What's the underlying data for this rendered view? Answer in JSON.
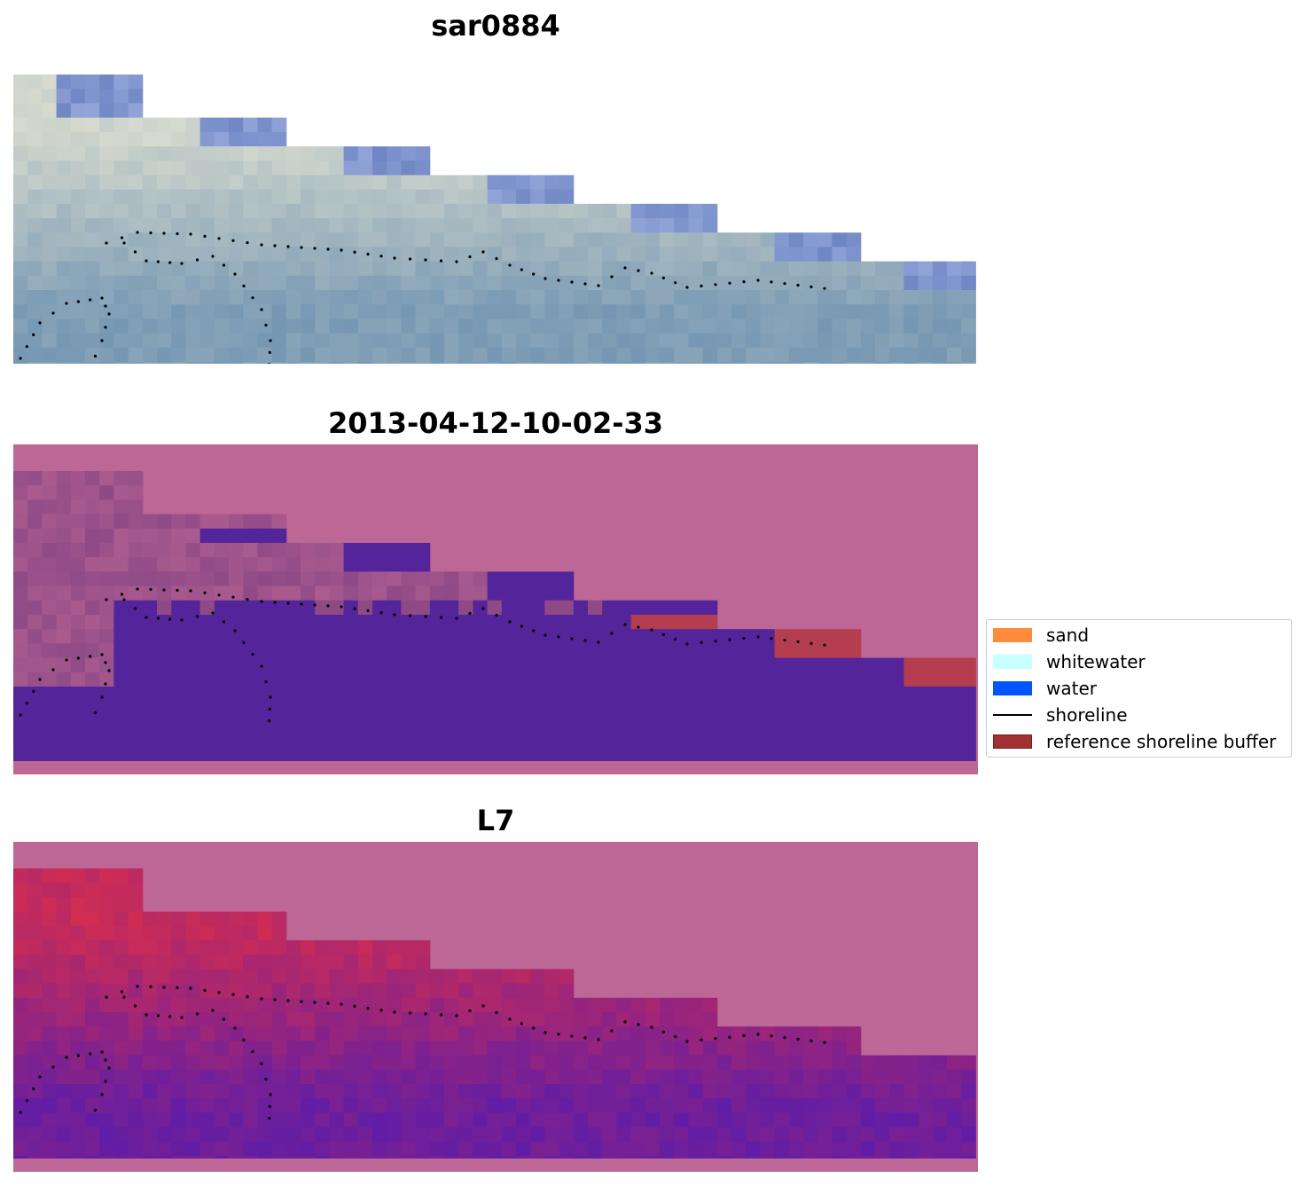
{
  "panels": [
    {
      "title": "sar0884"
    },
    {
      "title": "2013-04-12-10-02-33"
    },
    {
      "title": "L7"
    }
  ],
  "legend": {
    "items": [
      {
        "label": "sand",
        "color": "#ff8c3c",
        "kind": "patch"
      },
      {
        "label": "whitewater",
        "color": "#c8ffff",
        "kind": "patch"
      },
      {
        "label": "water",
        "color": "#0055ff",
        "kind": "patch"
      },
      {
        "label": "shoreline",
        "color": "#000000",
        "kind": "line"
      },
      {
        "label": "reference shoreline buffer",
        "color": "#a03232",
        "kind": "patch"
      }
    ]
  },
  "colors": {
    "sar_water": "#7a9ab4",
    "sar_sand": "#d9dccf",
    "background_magenta": "#bc6796",
    "classified_water": "#54259a",
    "classified_land": "#8f4a86",
    "buffer_red": "#b53d50",
    "l7_red": "#c42b5b",
    "l7_purple": "#6d1f9c"
  }
}
